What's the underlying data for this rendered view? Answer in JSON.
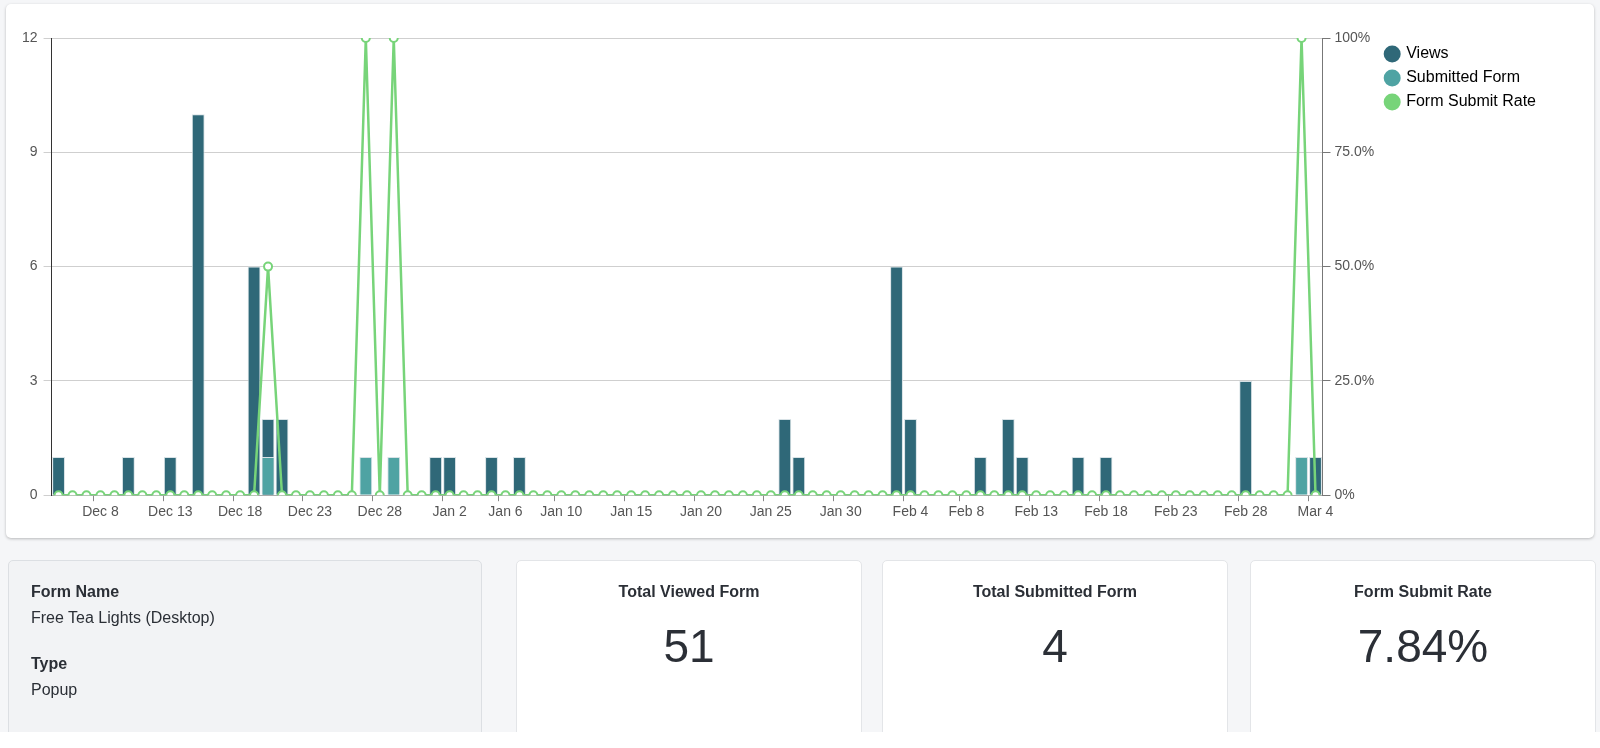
{
  "chart_data": [
    {
      "type": "bar",
      "categories": [
        null,
        null,
        null,
        "Dec 8",
        null,
        null,
        null,
        null,
        "Dec 13",
        null,
        null,
        null,
        null,
        "Dec 18",
        null,
        null,
        null,
        null,
        "Dec 23",
        null,
        null,
        null,
        null,
        "Dec 28",
        null,
        null,
        null,
        null,
        "Jan 2",
        null,
        null,
        null,
        "Jan 6",
        null,
        null,
        null,
        "Jan 10",
        null,
        null,
        null,
        null,
        "Jan 15",
        null,
        null,
        null,
        null,
        "Jan 20",
        null,
        null,
        null,
        null,
        "Jan 25",
        null,
        null,
        null,
        null,
        "Jan 30",
        null,
        null,
        null,
        null,
        "Feb 4",
        null,
        null,
        null,
        "Feb 8",
        null,
        null,
        null,
        null,
        "Feb 13",
        null,
        null,
        null,
        null,
        "Feb 18",
        null,
        null,
        null,
        null,
        "Feb 23",
        null,
        null,
        null,
        null,
        "Feb 28",
        null,
        null,
        null,
        null,
        "Mar 4"
      ],
      "series": [
        {
          "name": "Views",
          "color": "#2f6878",
          "values": [
            1,
            0,
            0,
            0,
            0,
            1,
            0,
            0,
            1,
            0,
            10,
            0,
            0,
            0,
            6,
            2,
            2,
            0,
            0,
            0,
            0,
            0,
            null,
            0,
            null,
            0,
            0,
            1,
            1,
            0,
            0,
            1,
            0,
            1,
            0,
            0,
            0,
            0,
            0,
            0,
            0,
            0,
            0,
            0,
            0,
            0,
            0,
            0,
            0,
            0,
            0,
            0,
            2,
            1,
            0,
            0,
            0,
            0,
            0,
            0,
            6,
            2,
            0,
            0,
            0,
            0,
            1,
            0,
            2,
            1,
            0,
            0,
            0,
            1,
            0,
            1,
            0,
            0,
            0,
            0,
            0,
            0,
            0,
            0,
            0,
            3,
            0,
            0,
            0,
            null,
            1
          ]
        },
        {
          "name": "Submitted Form",
          "color": "#4fa3a3",
          "values": [
            0,
            0,
            0,
            0,
            0,
            0,
            0,
            0,
            0,
            0,
            0,
            0,
            0,
            0,
            0,
            1,
            0,
            0,
            0,
            0,
            0,
            0,
            1,
            0,
            1,
            0,
            0,
            0,
            0,
            0,
            0,
            0,
            0,
            0,
            0,
            0,
            0,
            0,
            0,
            0,
            0,
            0,
            0,
            0,
            0,
            0,
            0,
            0,
            0,
            0,
            0,
            0,
            0,
            0,
            0,
            0,
            0,
            0,
            0,
            0,
            0,
            0,
            0,
            0,
            0,
            0,
            0,
            0,
            0,
            0,
            0,
            0,
            0,
            0,
            0,
            0,
            0,
            0,
            0,
            0,
            0,
            0,
            0,
            0,
            0,
            0,
            0,
            0,
            0,
            1,
            0
          ]
        },
        {
          "name": "Form Submit Rate",
          "type": "line",
          "axis": "y2",
          "color": "#77d479",
          "values": [
            0,
            0,
            0,
            0,
            0,
            0,
            0,
            0,
            0,
            0,
            0,
            0,
            0,
            0,
            0,
            50,
            0,
            0,
            0,
            0,
            0,
            0,
            100,
            0,
            100,
            0,
            0,
            0,
            0,
            0,
            0,
            0,
            0,
            0,
            0,
            0,
            0,
            0,
            0,
            0,
            0,
            0,
            0,
            0,
            0,
            0,
            0,
            0,
            0,
            0,
            0,
            0,
            0,
            0,
            0,
            0,
            0,
            0,
            0,
            0,
            0,
            0,
            0,
            0,
            0,
            0,
            0,
            0,
            0,
            0,
            0,
            0,
            0,
            0,
            0,
            0,
            0,
            0,
            0,
            0,
            0,
            0,
            0,
            0,
            0,
            0,
            0,
            0,
            0,
            100,
            0
          ]
        }
      ],
      "ylim": [
        0,
        12
      ],
      "yticks": [
        0,
        3,
        6,
        9,
        12
      ],
      "y2lim": [
        0,
        100
      ],
      "y2ticks": [
        {
          "value": 0,
          "label": "0%"
        },
        {
          "value": 25,
          "label": "25.0%"
        },
        {
          "value": 50,
          "label": "50.0%"
        },
        {
          "value": 75,
          "label": "75.0%"
        },
        {
          "value": 100,
          "label": "100%"
        }
      ],
      "grid": "y",
      "legend": "top right",
      "marker": "circle"
    },
    {
      "type": "other",
      "annotations": [
        "Form Name",
        "Free Tea Lights (Desktop)",
        "Type",
        "Popup"
      ]
    },
    {
      "type": "other",
      "title": "Total Viewed Form",
      "annotations": [
        "51"
      ]
    },
    {
      "type": "other",
      "title": "Total Submitted Form",
      "annotations": [
        "4"
      ]
    },
    {
      "type": "other",
      "title": "Form Submit Rate",
      "annotations": [
        "7.84%"
      ]
    }
  ]
}
